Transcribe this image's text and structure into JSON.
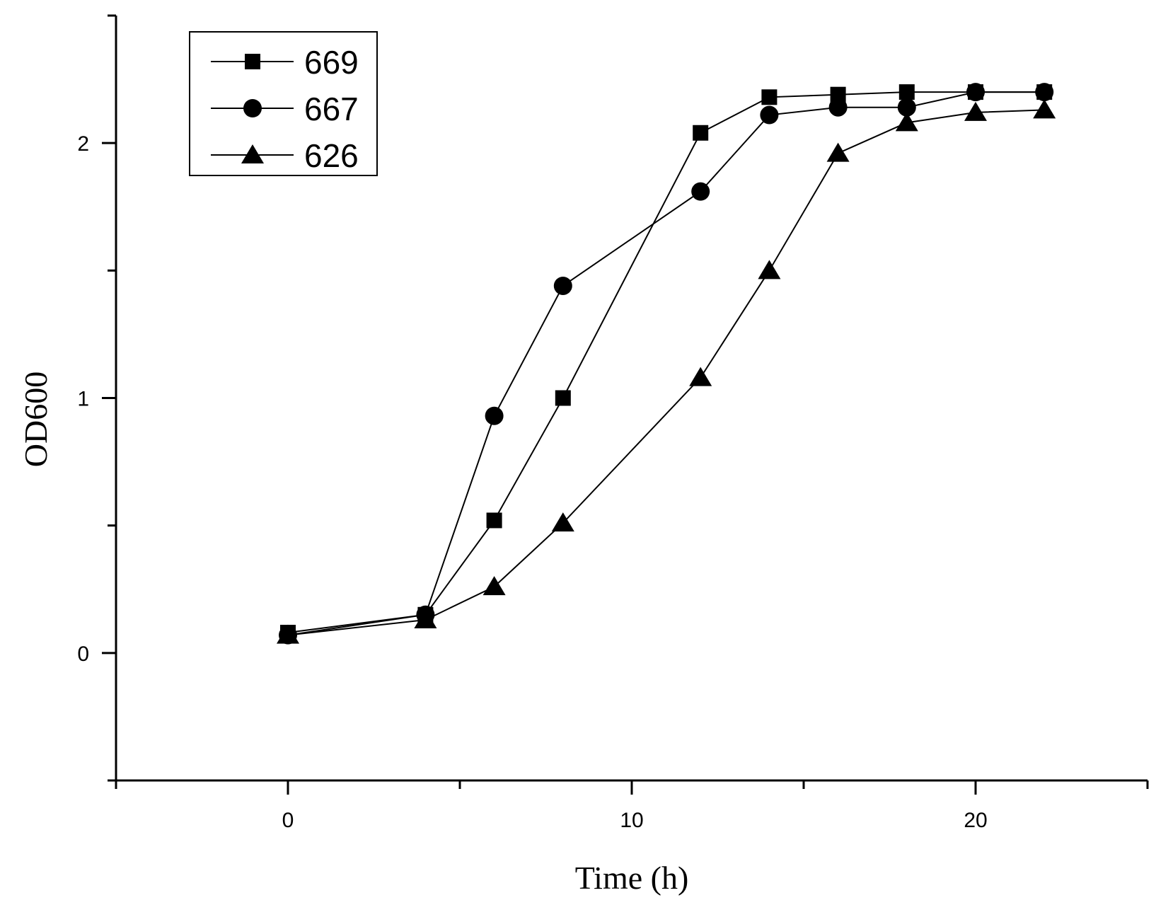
{
  "chart_data": {
    "type": "line",
    "title": "",
    "xlabel": "Time (h)",
    "ylabel": "OD600",
    "xlim": [
      -5,
      25
    ],
    "ylim": [
      -0.5,
      2.5
    ],
    "x_ticks": [
      0,
      10,
      20
    ],
    "y_ticks": [
      0,
      1,
      2
    ],
    "x_tick_labels": [
      "0",
      "10",
      "20"
    ],
    "y_tick_labels": [
      "0",
      "1",
      "2"
    ],
    "legend_position": "top-left",
    "grid": false,
    "series": [
      {
        "name": "669",
        "marker": "square",
        "x": [
          0,
          4,
          6,
          8,
          12,
          14,
          16,
          18,
          20,
          22
        ],
        "y": [
          0.08,
          0.15,
          0.52,
          1.0,
          2.04,
          2.18,
          2.19,
          2.2,
          2.2,
          2.2
        ]
      },
      {
        "name": "667",
        "marker": "circle",
        "x": [
          0,
          4,
          6,
          8,
          12,
          14,
          16,
          18,
          20,
          22
        ],
        "y": [
          0.07,
          0.15,
          0.93,
          1.44,
          1.81,
          2.11,
          2.14,
          2.14,
          2.2,
          2.2
        ]
      },
      {
        "name": "626",
        "marker": "triangle",
        "x": [
          0,
          4,
          6,
          8,
          12,
          14,
          16,
          18,
          20,
          22
        ],
        "y": [
          0.07,
          0.13,
          0.26,
          0.51,
          1.08,
          1.5,
          1.96,
          2.08,
          2.12,
          2.13
        ]
      }
    ]
  }
}
